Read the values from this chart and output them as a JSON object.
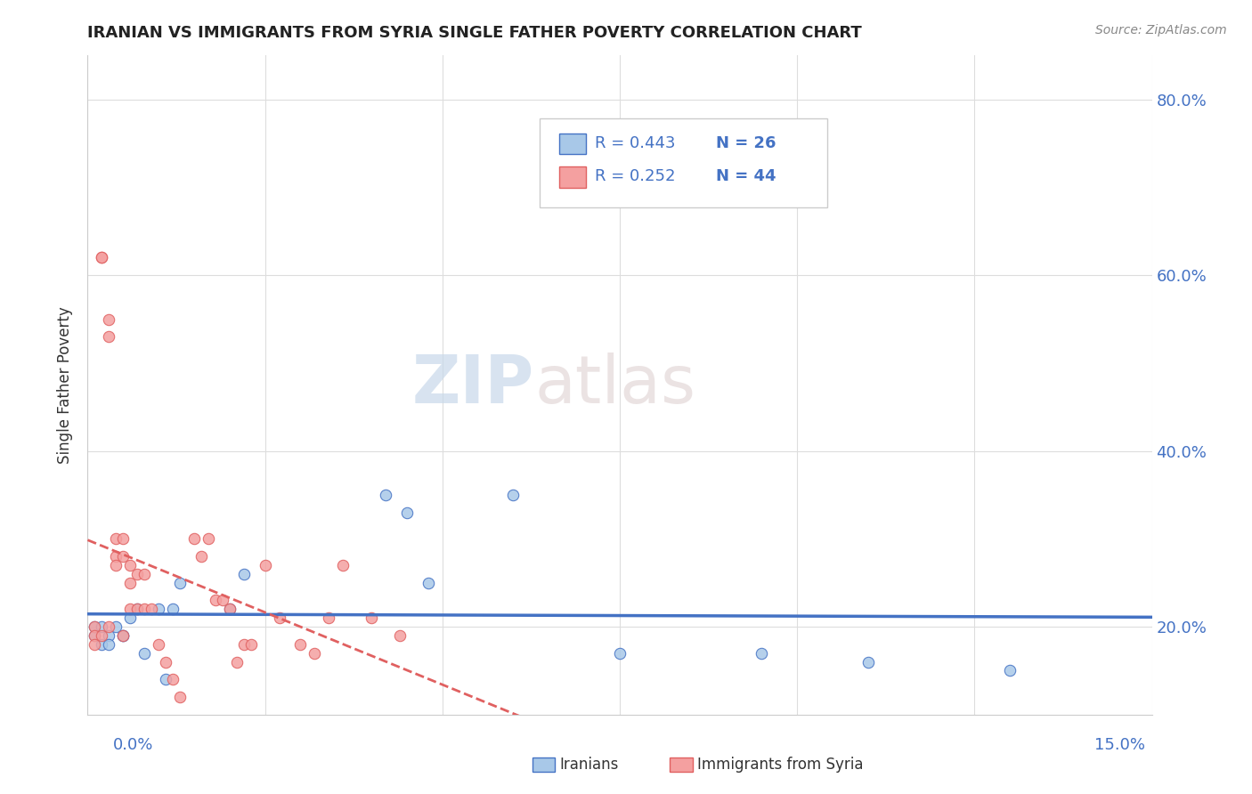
{
  "title": "IRANIAN VS IMMIGRANTS FROM SYRIA SINGLE FATHER POVERTY CORRELATION CHART",
  "source": "Source: ZipAtlas.com",
  "ylabel": "Single Father Poverty",
  "iranian_color": "#a8c8e8",
  "syria_color": "#f4a0a0",
  "iranian_line_color": "#4472c4",
  "syria_line_color": "#e06060",
  "watermark_zip": "ZIP",
  "watermark_atlas": "atlas",
  "xlim": [
    0.0,
    0.15
  ],
  "ylim": [
    0.1,
    0.85
  ],
  "iran_x": [
    0.001,
    0.001,
    0.002,
    0.002,
    0.003,
    0.003,
    0.004,
    0.005,
    0.005,
    0.006,
    0.007,
    0.008,
    0.01,
    0.011,
    0.012,
    0.013,
    0.02,
    0.022,
    0.042,
    0.045,
    0.048,
    0.06,
    0.075,
    0.095,
    0.11,
    0.13
  ],
  "iran_y": [
    0.19,
    0.2,
    0.18,
    0.2,
    0.19,
    0.18,
    0.2,
    0.19,
    0.19,
    0.21,
    0.22,
    0.17,
    0.22,
    0.14,
    0.22,
    0.25,
    0.22,
    0.26,
    0.35,
    0.33,
    0.25,
    0.35,
    0.17,
    0.17,
    0.16,
    0.15
  ],
  "syria_x": [
    0.001,
    0.001,
    0.001,
    0.002,
    0.002,
    0.002,
    0.003,
    0.003,
    0.003,
    0.004,
    0.004,
    0.004,
    0.005,
    0.005,
    0.005,
    0.006,
    0.006,
    0.006,
    0.007,
    0.007,
    0.008,
    0.008,
    0.009,
    0.01,
    0.011,
    0.012,
    0.013,
    0.015,
    0.016,
    0.017,
    0.018,
    0.019,
    0.02,
    0.021,
    0.022,
    0.023,
    0.025,
    0.027,
    0.03,
    0.032,
    0.034,
    0.036,
    0.04,
    0.044
  ],
  "syria_y": [
    0.2,
    0.19,
    0.18,
    0.62,
    0.62,
    0.19,
    0.55,
    0.53,
    0.2,
    0.28,
    0.3,
    0.27,
    0.3,
    0.28,
    0.19,
    0.27,
    0.25,
    0.22,
    0.26,
    0.22,
    0.26,
    0.22,
    0.22,
    0.18,
    0.16,
    0.14,
    0.12,
    0.3,
    0.28,
    0.3,
    0.23,
    0.23,
    0.22,
    0.16,
    0.18,
    0.18,
    0.27,
    0.21,
    0.18,
    0.17,
    0.21,
    0.27,
    0.21,
    0.19
  ],
  "background_color": "#ffffff",
  "grid_color": "#dddddd",
  "legend_R_iran": "R = 0.443",
  "legend_N_iran": "N = 26",
  "legend_R_syria": "R = 0.252",
  "legend_N_syria": "N = 44",
  "label_iranian": "Iranians",
  "label_syria": "Immigrants from Syria",
  "ytick_labels": [
    "20.0%",
    "40.0%",
    "60.0%",
    "80.0%"
  ],
  "ytick_vals": [
    0.2,
    0.4,
    0.6,
    0.8
  ],
  "xtick_left": "0.0%",
  "xtick_right": "15.0%"
}
